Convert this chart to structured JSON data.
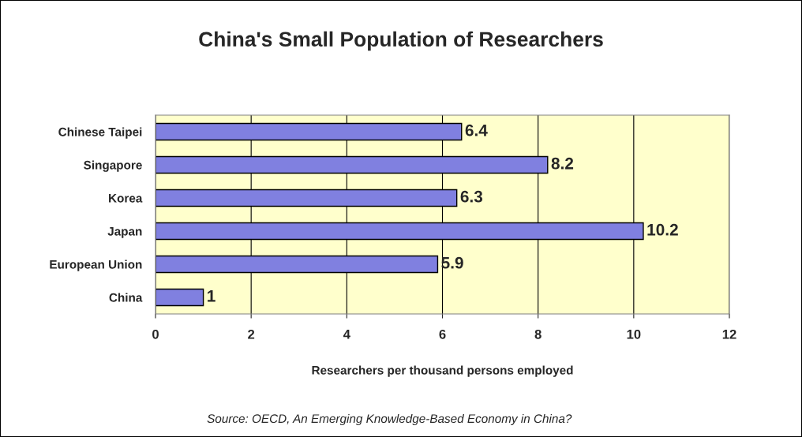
{
  "chart_data": {
    "type": "bar",
    "orientation": "horizontal",
    "title": "China's Small Population of Researchers",
    "categories": [
      "Chinese Taipei",
      "Singapore",
      "Korea",
      "Japan",
      "European Union",
      "China"
    ],
    "values": [
      6.4,
      8.2,
      6.3,
      10.2,
      5.9,
      1
    ],
    "color": "#8080e0",
    "xlim": [
      0,
      12
    ],
    "xticks": [
      0,
      2,
      4,
      6,
      8,
      10,
      12
    ],
    "grid": "x",
    "data_labels": true,
    "xlabel": "Researchers per thousand persons employed",
    "annotations": [
      "Source: OECD, An Emerging Knowledge-Based Economy in China?"
    ]
  }
}
